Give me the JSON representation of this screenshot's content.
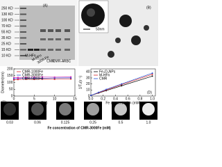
{
  "panel_a": {
    "label": "(A)",
    "markers": [
      "250 KD",
      "130 KD",
      "100 KD",
      "70 KD",
      "55 KD",
      "35 KD",
      "25 KD",
      "15 KD",
      "10 KD"
    ],
    "lanes": [
      "M-HFn",
      "M-HFn",
      "3000 Fe",
      "CMR",
      "CMR-A",
      "RBC"
    ]
  },
  "panel_b": {
    "label": "(B)",
    "scale": "50nm"
  },
  "mri": {
    "labels": [
      "0.03",
      "0.06",
      "0.125",
      "0.25",
      "0.5",
      "1.0"
    ],
    "caption": "Fe concentration of CMR-3000Fe (mM)"
  },
  "chart_data": [
    {
      "type": "line",
      "label": "(C)",
      "x_label": "T(d)",
      "y_label": "Diameter(nm)",
      "x": [
        0,
        1,
        3,
        5,
        7,
        10,
        14
      ],
      "xlim": [
        0,
        15
      ],
      "xticks": [
        0,
        5,
        10,
        15
      ],
      "ylim": [
        0,
        200
      ],
      "yticks": [
        0,
        50,
        100,
        150,
        200
      ],
      "legend": "upper-left",
      "series": [
        {
          "name": "CMR-1000Fe",
          "color": "#d62728",
          "values": [
            120,
            122,
            124,
            123,
            125,
            124,
            126
          ]
        },
        {
          "name": "CMR-3000Fe",
          "color": "#1f4fd6",
          "values": [
            128,
            130,
            131,
            132,
            131,
            133,
            134
          ]
        },
        {
          "name": "CMR-5000Fe",
          "color": "#d63bb8",
          "values": [
            135,
            137,
            138,
            139,
            140,
            139,
            141
          ]
        }
      ]
    },
    {
      "type": "scatter",
      "label": "(D)",
      "x_label": "Fe concentration (mM)",
      "y_label": "1/T₂(s⁻¹)",
      "x": [
        0,
        0.125,
        0.25,
        0.5,
        1
      ],
      "xlim": [
        0,
        1.05
      ],
      "xticks": [
        {
          "value": 0,
          "label": "0.0"
        },
        0.2,
        0.4,
        0.6,
        0.8,
        {
          "value": 1,
          "label": "1.0"
        }
      ],
      "ylim": [
        0,
        45
      ],
      "yticks": [
        0,
        10,
        20,
        30,
        40
      ],
      "legend": "upper-left",
      "series": [
        {
          "name": "Fe₃O₄NPs",
          "color": "#000000",
          "values": [
            1,
            5,
            9,
            17,
            33
          ]
        },
        {
          "name": "M-HFn",
          "color": "#d62728",
          "values": [
            1,
            5.5,
            10,
            19,
            36
          ]
        },
        {
          "name": "CMR",
          "color": "#1f4fd6",
          "values": [
            1,
            6,
            11,
            20,
            38
          ]
        }
      ]
    }
  ]
}
